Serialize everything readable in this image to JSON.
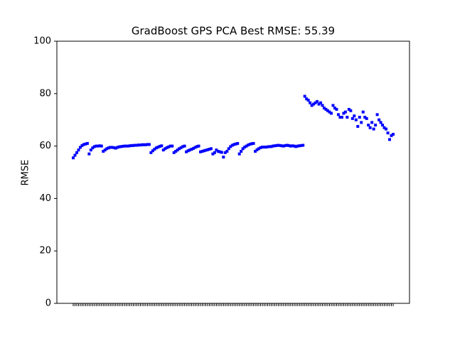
{
  "chart_data": {
    "type": "scatter",
    "title": "GradBoost GPS PCA Best RMSE: 55.39",
    "y_label": "RMSE",
    "ylim": [
      0,
      100
    ],
    "yticks": [
      0,
      20,
      40,
      60,
      80,
      100
    ],
    "color": "#0000ff",
    "marker": "square",
    "values": [
      55.5,
      56.5,
      57.5,
      58.5,
      59.5,
      60.2,
      60.6,
      60.8,
      61,
      57,
      58.5,
      59.3,
      59.8,
      60,
      60,
      60.1,
      60,
      58,
      58.5,
      59,
      59.3,
      59.5,
      59.5,
      59.4,
      59.2,
      59.5,
      59.7,
      59.8,
      59.9,
      60,
      60,
      60,
      60.1,
      60.2,
      60.2,
      60.3,
      60.3,
      60.4,
      60.4,
      60.5,
      60.5,
      60.5,
      60.6,
      60.6,
      57.5,
      58.2,
      58.8,
      59.3,
      59.6,
      59.9,
      60.1,
      58.5,
      59,
      59.4,
      59.7,
      60,
      60,
      57.5,
      58,
      58.5,
      59,
      59.4,
      59.8,
      60,
      57.8,
      58.2,
      58.5,
      58.8,
      59.1,
      59.5,
      59.8,
      60,
      57.8,
      58,
      58.2,
      58.4,
      58.6,
      58.8,
      59,
      57,
      57.5,
      58.5,
      58,
      57.8,
      57.6,
      55.8,
      57.5,
      58,
      59,
      59.8,
      60.3,
      60.6,
      60.8,
      61,
      57,
      58,
      59,
      59.6,
      60,
      60.4,
      60.7,
      60.9,
      61,
      58,
      58.6,
      59,
      59.4,
      59.6,
      59.6,
      59.6,
      59.7,
      59.8,
      59.8,
      60,
      60.1,
      60.2,
      60.3,
      60.2,
      60.1,
      60,
      60.2,
      60.3,
      60.2,
      60,
      60.1,
      60,
      59.8,
      60,
      60.1,
      60.2,
      60.3,
      79,
      78,
      77.5,
      76.5,
      75.5,
      76,
      76.5,
      77,
      76,
      76.5,
      75.5,
      74.5,
      74,
      73.5,
      73,
      72.5,
      75.5,
      74.5,
      74,
      72,
      71,
      71,
      72.5,
      73,
      71,
      74,
      73.5,
      70.5,
      71.5,
      70,
      67.5,
      71,
      69,
      73,
      71,
      70.5,
      68,
      67,
      69,
      66.5,
      68,
      72,
      70,
      69,
      68,
      67,
      66.5,
      65,
      62.5,
      64,
      64.5
    ]
  }
}
